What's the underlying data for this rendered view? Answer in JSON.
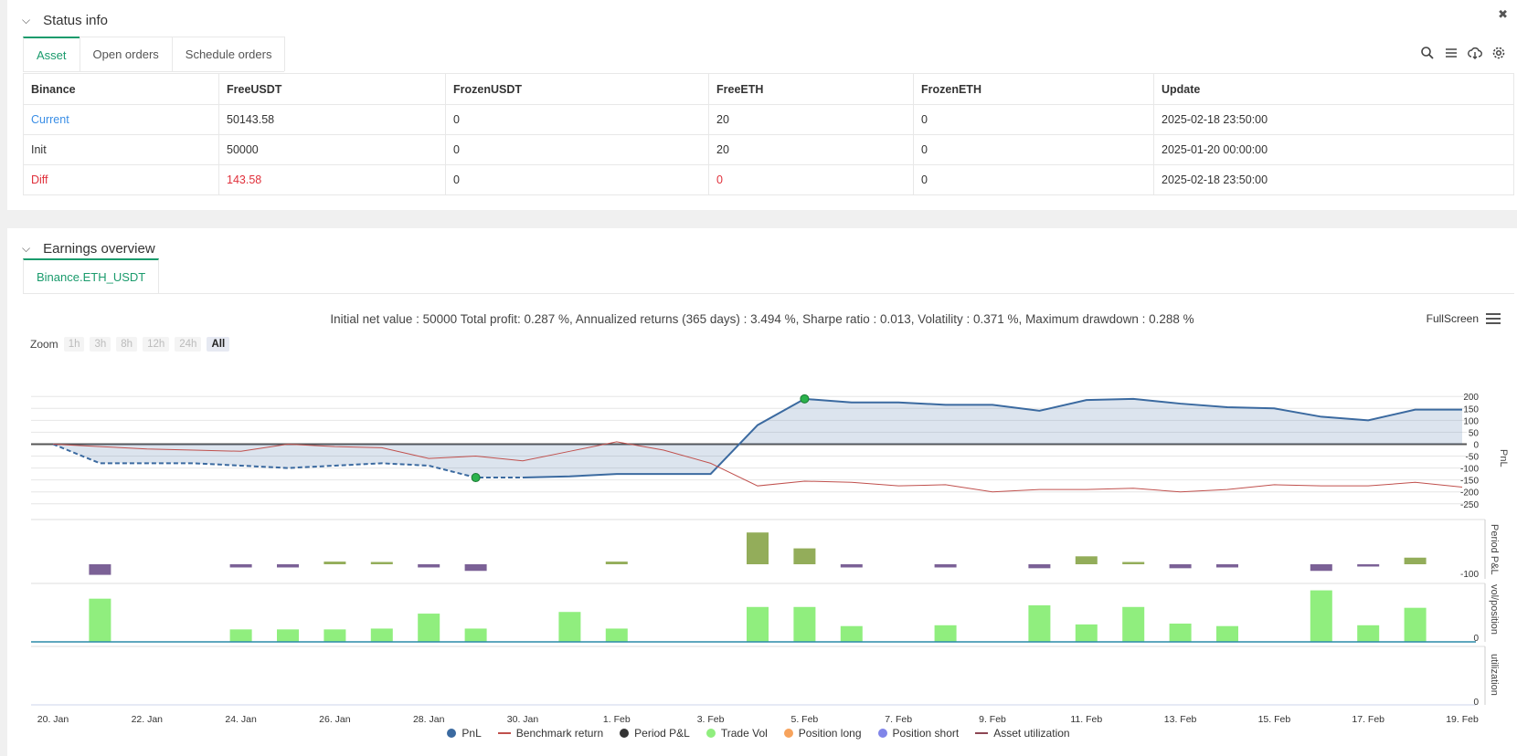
{
  "status": {
    "title": "Status info",
    "tabs": [
      "Asset",
      "Open orders",
      "Schedule orders"
    ],
    "table": {
      "headers": [
        "Binance",
        "FreeUSDT",
        "FrozenUSDT",
        "FreeETH",
        "FrozenETH",
        "Update"
      ],
      "rows": [
        {
          "label": "Current",
          "cells": [
            "50143.58",
            "0",
            "20",
            "0",
            "2025-02-18 23:50:00"
          ]
        },
        {
          "label": "Init",
          "cells": [
            "50000",
            "0",
            "20",
            "0",
            "2025-01-20 00:00:00"
          ]
        },
        {
          "label": "Diff",
          "cells": [
            "143.58",
            "0",
            "0",
            "0",
            "2025-02-18 23:50:00"
          ]
        }
      ]
    }
  },
  "earnings": {
    "title": "Earnings overview",
    "tab": "Binance.ETH_USDT",
    "summary": "Initial net value : 50000 Total profit: 0.287 %, Annualized returns (365 days) : 3.494 %, Sharpe ratio : 0.013, Volatility : 0.371 %, Maximum drawdown : 0.288 %",
    "fullscreen": "FullScreen",
    "zoom": {
      "label": "Zoom",
      "options": [
        "1h",
        "3h",
        "8h",
        "12h",
        "24h",
        "All"
      ],
      "selected": "All"
    }
  },
  "chart_data": {
    "type": "line",
    "x_ticks": [
      "20. Jan",
      "22. Jan",
      "24. Jan",
      "26. Jan",
      "28. Jan",
      "30. Jan",
      "1. Feb",
      "3. Feb",
      "5. Feb",
      "7. Feb",
      "9. Feb",
      "11. Feb",
      "13. Feb",
      "15. Feb",
      "17. Feb",
      "19. Feb"
    ],
    "pnl_axis": {
      "label": "PnL",
      "ticks": [
        200,
        150,
        100,
        50,
        0,
        -50,
        -100,
        -150,
        -200,
        -250
      ],
      "ylim": [
        -270,
        220
      ]
    },
    "period_axis": {
      "label": "Period P&L",
      "ticks": [
        -100
      ]
    },
    "vol_axis": {
      "label": "vol/position",
      "ticks": [
        0
      ]
    },
    "util_axis": {
      "label": "utilization",
      "ticks": [
        0
      ]
    },
    "days": [
      0,
      1,
      2,
      3,
      4,
      5,
      6,
      7,
      8,
      9,
      10,
      11,
      12,
      13,
      14,
      15,
      16,
      17,
      18,
      19,
      20,
      21,
      22,
      23,
      24,
      25,
      26,
      27,
      28,
      29,
      30
    ],
    "series": [
      {
        "name": "PnL",
        "color": "#3b6aa0",
        "values": [
          0,
          -80,
          -80,
          -80,
          -90,
          -100,
          -90,
          -80,
          -90,
          -140,
          -140,
          -135,
          -125,
          -125,
          -125,
          80,
          190,
          175,
          175,
          165,
          165,
          140,
          185,
          190,
          170,
          155,
          150,
          115,
          100,
          145,
          145
        ]
      },
      {
        "name": "Benchmark return",
        "color": "#c0504d",
        "values": [
          0,
          -10,
          -20,
          -25,
          -30,
          0,
          -10,
          -15,
          -60,
          -50,
          -70,
          -30,
          10,
          -25,
          -80,
          -175,
          -155,
          -160,
          -175,
          -170,
          -200,
          -190,
          -190,
          -185,
          -200,
          -190,
          -170,
          -175,
          -175,
          -160,
          -180
        ]
      },
      {
        "name": "Period P&L",
        "color": "#7b6196",
        "values": [
          0,
          -40,
          0,
          0,
          -12,
          -12,
          10,
          8,
          -12,
          -25,
          0,
          0,
          10,
          0,
          0,
          120,
          60,
          -12,
          0,
          -12,
          0,
          -15,
          30,
          5,
          -15,
          -12,
          0,
          -25,
          -5,
          25,
          0
        ]
      },
      {
        "name": "Trade Vol",
        "color": "#90ee7e",
        "values": [
          0,
          52,
          0,
          0,
          15,
          15,
          15,
          16,
          34,
          16,
          0,
          36,
          16,
          0,
          0,
          42,
          42,
          19,
          0,
          20,
          0,
          44,
          21,
          42,
          22,
          19,
          0,
          62,
          20,
          41,
          0
        ]
      },
      {
        "name": "Position long",
        "color": "#f7a35c",
        "values": []
      },
      {
        "name": "Position short",
        "color": "#8085e9",
        "values": []
      },
      {
        "name": "Asset utilization",
        "color": "#8d4653",
        "values": []
      }
    ],
    "markers": [
      {
        "day": 9,
        "kind": "trade"
      },
      {
        "day": 16,
        "kind": "trade"
      }
    ]
  }
}
